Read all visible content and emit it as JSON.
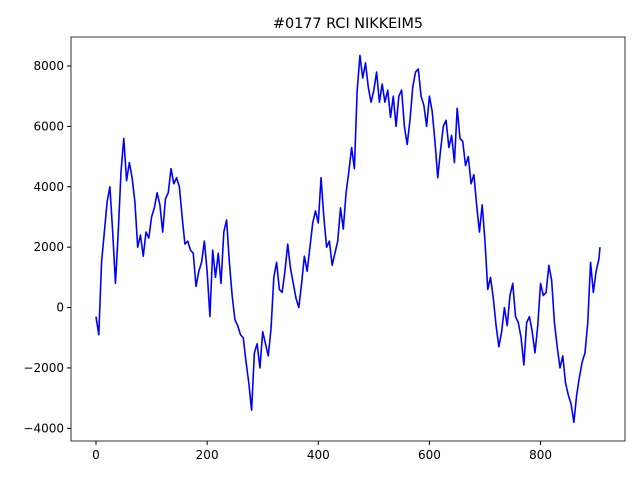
{
  "chart_data": {
    "type": "line",
    "title": "#0177 RCI NIKKEIM5",
    "x": [
      0,
      5,
      10,
      15,
      20,
      25,
      30,
      35,
      40,
      45,
      50,
      55,
      60,
      65,
      70,
      75,
      80,
      85,
      90,
      95,
      100,
      105,
      110,
      115,
      120,
      125,
      130,
      135,
      140,
      145,
      150,
      155,
      160,
      165,
      170,
      175,
      180,
      185,
      190,
      195,
      200,
      205,
      210,
      215,
      220,
      225,
      230,
      235,
      240,
      245,
      250,
      255,
      260,
      265,
      270,
      275,
      280,
      285,
      290,
      295,
      300,
      305,
      310,
      315,
      320,
      325,
      330,
      335,
      340,
      345,
      350,
      355,
      360,
      365,
      370,
      375,
      380,
      385,
      390,
      395,
      400,
      405,
      410,
      415,
      420,
      425,
      430,
      435,
      440,
      445,
      450,
      455,
      460,
      465,
      470,
      475,
      480,
      485,
      490,
      495,
      500,
      505,
      510,
      515,
      520,
      525,
      530,
      535,
      540,
      545,
      550,
      555,
      560,
      565,
      570,
      575,
      580,
      585,
      590,
      595,
      600,
      605,
      610,
      615,
      620,
      625,
      630,
      635,
      640,
      645,
      650,
      655,
      660,
      665,
      670,
      675,
      680,
      685,
      690,
      695,
      700,
      705,
      710,
      715,
      720,
      725,
      730,
      735,
      740,
      745,
      750,
      755,
      760,
      765,
      770,
      775,
      780,
      785,
      790,
      795,
      800,
      805,
      810,
      815,
      820,
      825,
      830,
      835,
      840,
      845,
      850,
      855,
      860,
      865,
      870,
      875,
      880,
      885,
      890,
      895,
      900,
      905,
      907
    ],
    "series": [
      {
        "color": "#0000ff",
        "values": [
          -300,
          -900,
          1500,
          2500,
          3500,
          4000,
          2500,
          800,
          2500,
          4500,
          5600,
          4200,
          4800,
          4300,
          3500,
          2000,
          2400,
          1700,
          2500,
          2300,
          3000,
          3300,
          3800,
          3400,
          2500,
          3600,
          3800,
          4600,
          4100,
          4300,
          4000,
          3000,
          2100,
          2200,
          1900,
          1800,
          700,
          1200,
          1500,
          2200,
          1200,
          -300,
          1900,
          1000,
          1800,
          800,
          2500,
          2900,
          1500,
          400,
          -400,
          -600,
          -900,
          -1000,
          -1800,
          -2500,
          -3400,
          -1500,
          -1200,
          -2000,
          -800,
          -1200,
          -1600,
          -700,
          1000,
          1500,
          600,
          500,
          1200,
          2100,
          1300,
          800,
          300,
          0,
          800,
          1700,
          1200,
          2000,
          2800,
          3200,
          2800,
          4300,
          3000,
          2000,
          2200,
          1400,
          1800,
          2200,
          3300,
          2600,
          3800,
          4500,
          5300,
          4600,
          7200,
          8350,
          7600,
          8100,
          7300,
          6800,
          7200,
          7800,
          6800,
          7400,
          6800,
          7200,
          6300,
          7000,
          6000,
          7000,
          7200,
          6000,
          5400,
          6200,
          7300,
          7800,
          7900,
          7000,
          6700,
          6000,
          7000,
          6500,
          5500,
          4300,
          5200,
          6000,
          6200,
          5300,
          5700,
          4800,
          6600,
          5600,
          5500,
          4700,
          5000,
          4100,
          4400,
          3400,
          2500,
          3400,
          2200,
          600,
          1000,
          300,
          -600,
          -1300,
          -800,
          0,
          -600,
          400,
          800,
          -300,
          -500,
          -1000,
          -1900,
          -500,
          -300,
          -800,
          -1500,
          -600,
          800,
          400,
          500,
          1400,
          900,
          -500,
          -1300,
          -2000,
          -1600,
          -2500,
          -2900,
          -3200,
          -3800,
          -2900,
          -2300,
          -1800,
          -1500,
          -500,
          1500,
          500,
          1200,
          1600,
          2000
        ]
      }
    ],
    "xlim": [
      -45,
      952
    ],
    "xticks": [
      0,
      200,
      400,
      600,
      800
    ],
    "ylim": [
      -4420,
      8960
    ],
    "yticks": [
      {
        "value": -4000,
        "label": "−4000"
      },
      {
        "value": -2000,
        "label": "−2000"
      },
      0,
      2000,
      4000,
      6000,
      8000
    ]
  }
}
